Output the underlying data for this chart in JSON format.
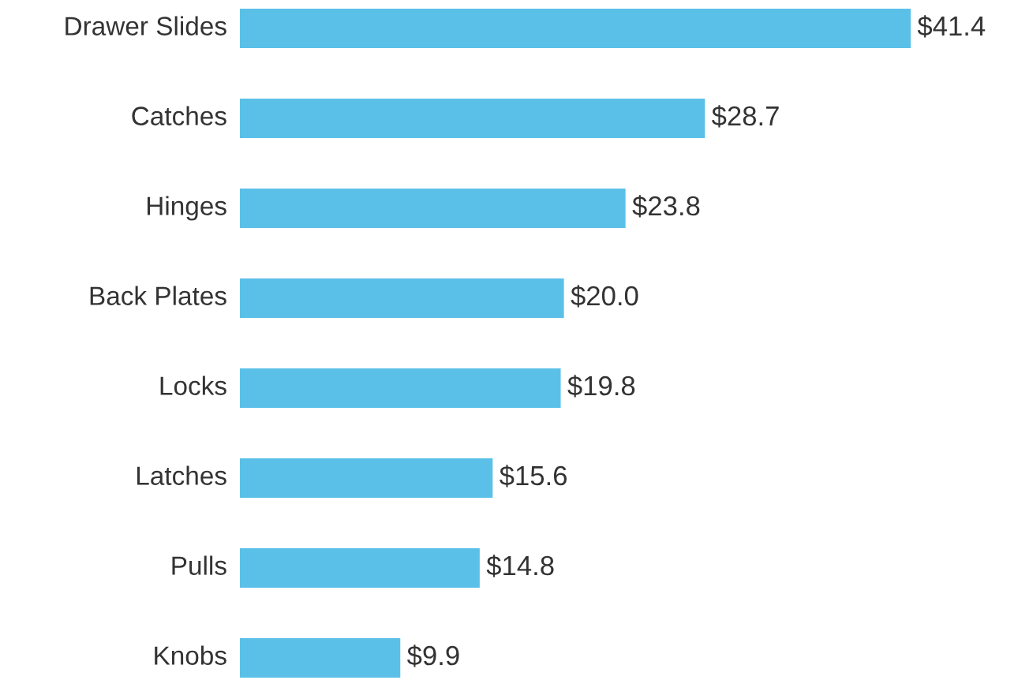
{
  "chart_data": {
    "type": "bar",
    "orientation": "horizontal",
    "categories": [
      "Drawer Slides",
      "Catches",
      "Hinges",
      "Back Plates",
      "Locks",
      "Latches",
      "Pulls",
      "Knobs"
    ],
    "values": [
      41.4,
      28.7,
      23.8,
      20.0,
      19.8,
      15.6,
      14.8,
      9.9
    ],
    "value_labels": [
      "$41.4",
      "$28.7",
      "$23.8",
      "$20.0",
      "$19.8",
      "$15.6",
      "$14.8",
      "$9.9"
    ],
    "color": "#5bc0e8"
  }
}
